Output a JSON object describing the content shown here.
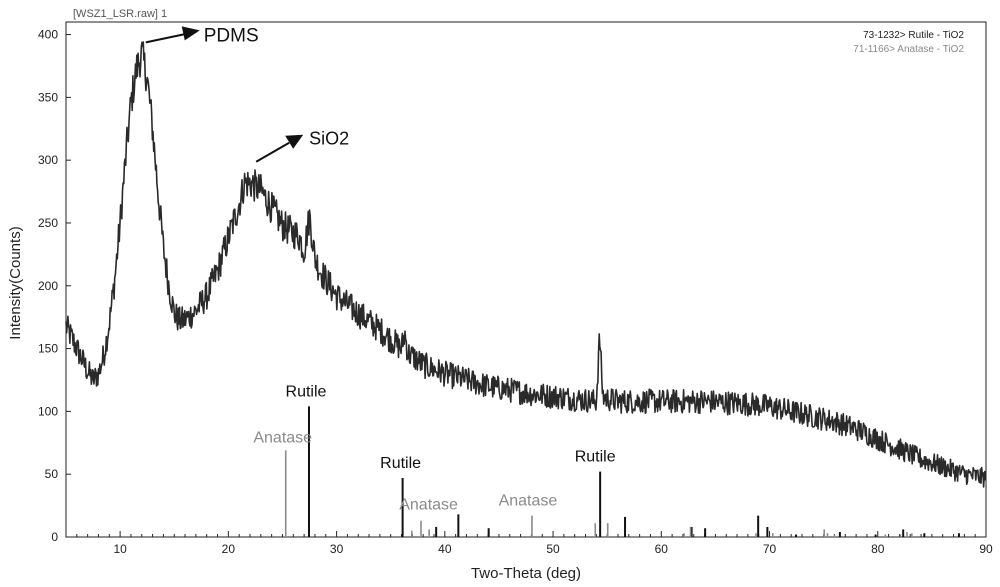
{
  "chart_data": {
    "type": "line",
    "title": "[WSZ1_LSR.raw] 1",
    "xlabel": "Two-Theta (deg)",
    "ylabel": "Intensity(Counts)",
    "xlim": [
      5,
      90
    ],
    "ylim": [
      0,
      410
    ],
    "xticks": [
      10,
      20,
      30,
      40,
      50,
      60,
      70,
      80,
      90
    ],
    "yticks": [
      0,
      50,
      100,
      150,
      200,
      250,
      300,
      350,
      400
    ],
    "grid": false,
    "legend_placement": "top-right",
    "legend": [
      {
        "text": "73-1232> Rutile - TiO2",
        "color": "#222222"
      },
      {
        "text": "71-1166> Anatase - TiO2",
        "color": "#8a8a8a"
      }
    ],
    "pattern": {
      "x": [
        5,
        6,
        7,
        7.5,
        8,
        8.5,
        9,
        9.5,
        10,
        10.5,
        11,
        11.5,
        12,
        12.5,
        13,
        13.5,
        14,
        14.5,
        15,
        15.5,
        16,
        17,
        18,
        19,
        20,
        21,
        21.5,
        22,
        23,
        24,
        25,
        26,
        26.5,
        27,
        27.5,
        28,
        28.5,
        29,
        30,
        32,
        34,
        36,
        36.3,
        36.6,
        37,
        38,
        40,
        42,
        44,
        46,
        48,
        50,
        52,
        54,
        54.3,
        54.6,
        55,
        56,
        58,
        60,
        62,
        64,
        66,
        68,
        70,
        72,
        74,
        76,
        78,
        80,
        82,
        84,
        86,
        88,
        90
      ],
      "y": [
        168,
        150,
        132,
        125,
        130,
        145,
        170,
        205,
        250,
        300,
        345,
        372,
        385,
        365,
        325,
        275,
        230,
        200,
        178,
        172,
        173,
        180,
        192,
        212,
        238,
        265,
        282,
        282,
        276,
        262,
        248,
        242,
        240,
        228,
        255,
        222,
        212,
        205,
        192,
        178,
        165,
        150,
        162,
        146,
        144,
        137,
        130,
        125,
        120,
        117,
        114,
        112,
        110,
        108,
        160,
        112,
        110,
        108,
        108,
        108,
        108,
        108,
        107,
        106,
        104,
        100,
        96,
        92,
        86,
        78,
        70,
        62,
        56,
        50,
        47
      ]
    },
    "series": [
      {
        "name": "Rutile - TiO2",
        "color": "#111111",
        "x": [
          27.45,
          36.1,
          39.2,
          41.25,
          44.05,
          54.35,
          56.65,
          62.8,
          64.05,
          68.95,
          69.8,
          72.45,
          76.5,
          79.8,
          82.35,
          84.3,
          87.5
        ],
        "y": [
          104,
          47,
          8,
          18,
          7,
          52,
          16,
          8,
          7,
          17,
          8,
          2,
          4,
          2,
          6,
          3,
          3
        ]
      },
      {
        "name": "Anatase - TiO2",
        "color": "#8a8a8a",
        "x": [
          25.3,
          36.95,
          37.8,
          38.55,
          48.05,
          53.9,
          55.05,
          62.1,
          62.7,
          68.75,
          70.3,
          75.05,
          75.35,
          76.0,
          80.7,
          82.1,
          82.7,
          83.15
        ],
        "y": [
          69,
          5,
          13,
          6,
          17,
          11,
          11,
          3,
          8,
          3,
          3,
          6,
          3,
          2,
          2,
          2,
          4,
          3
        ]
      }
    ],
    "annotations": [
      {
        "text": "PDMS",
        "x": 12,
        "y": 385
      },
      {
        "text": "SiO2",
        "x": 21,
        "y": 290
      },
      {
        "text": "Rutile",
        "x": 27.45,
        "y": 104
      },
      {
        "text": "Anatase",
        "x": 25.3,
        "y": 69
      },
      {
        "text": "Rutile",
        "x": 36.1,
        "y": 47
      },
      {
        "text": "Anatase",
        "x": 38.5,
        "y": 17
      },
      {
        "text": "Anatase",
        "x": 48.05,
        "y": 17
      },
      {
        "text": "Rutile",
        "x": 54.35,
        "y": 52
      }
    ]
  }
}
